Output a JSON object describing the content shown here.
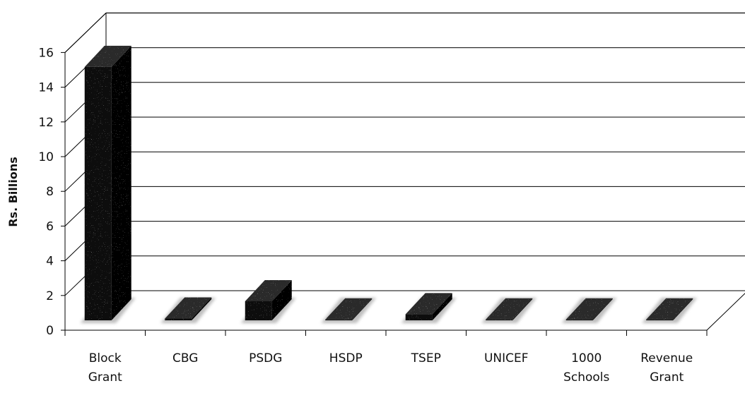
{
  "chart_data": {
    "type": "bar",
    "categories": [
      [
        "Block",
        "Grant"
      ],
      [
        "CBG"
      ],
      [
        "PSDG"
      ],
      [
        "HSDP"
      ],
      [
        "TSEP"
      ],
      [
        "UNICEF"
      ],
      [
        "1000",
        "Schools"
      ],
      [
        "Revenue",
        "Grant"
      ]
    ],
    "values": [
      14.6,
      0.1,
      1.1,
      0.05,
      0.35,
      0.05,
      0.05,
      0.05
    ],
    "ylabel": "Rs. Billions",
    "ylim": [
      0,
      16
    ],
    "yticks": [
      0,
      2,
      4,
      6,
      8,
      10,
      12,
      14,
      16
    ],
    "grid": true,
    "style": "3d-column",
    "colors": {
      "bar": "#0d0d0d",
      "bar_side": "#000000",
      "bar_top": "#2a2a2a",
      "grid": "#000000",
      "background": "#ffffff"
    }
  }
}
